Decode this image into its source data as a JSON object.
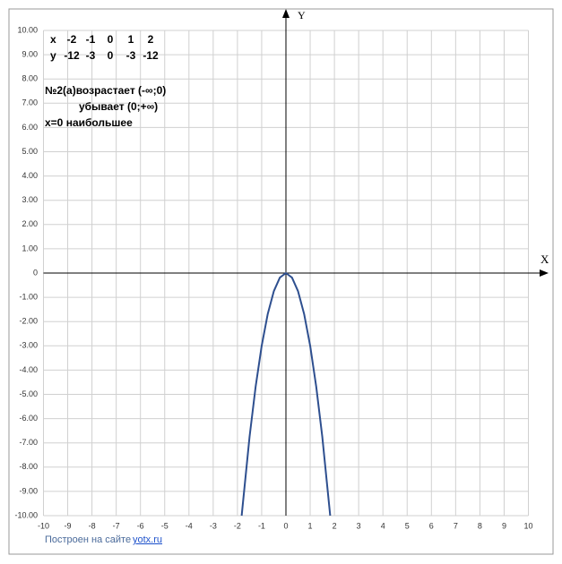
{
  "chart_data": {
    "type": "line",
    "x_label": "X",
    "y_label": "Y",
    "x": [
      -1.826,
      -1.5,
      -1.25,
      -1,
      -0.75,
      -0.5,
      -0.25,
      0,
      0.25,
      0.5,
      0.75,
      1,
      1.25,
      1.5,
      1.826
    ],
    "series": [
      {
        "color": "#2e4f8f",
        "values": [
          -10,
          -6.75,
          -4.6875,
          -3,
          -1.6875,
          -0.75,
          -0.1875,
          0,
          -0.1875,
          -0.75,
          -1.6875,
          -3,
          -4.6875,
          -6.75,
          -10
        ]
      }
    ],
    "xlim": [
      -10,
      10
    ],
    "ylim": [
      -10,
      10
    ],
    "xticks": [
      -10,
      -9,
      -8,
      -7,
      -6,
      -5,
      -4,
      -3,
      -2,
      -1,
      0,
      1,
      2,
      3,
      4,
      5,
      6,
      7,
      8,
      9,
      10
    ],
    "yticks": [
      {
        "value": 10,
        "label": "10.00"
      },
      {
        "value": 9,
        "label": "9.00"
      },
      {
        "value": 8,
        "label": "8.00"
      },
      {
        "value": 7,
        "label": "7.00"
      },
      {
        "value": 6,
        "label": "6.00"
      },
      {
        "value": 5,
        "label": "5.00"
      },
      {
        "value": 4,
        "label": "4.00"
      },
      {
        "value": 3,
        "label": "3.00"
      },
      {
        "value": 2,
        "label": "2.00"
      },
      {
        "value": 1,
        "label": "1.00"
      },
      0,
      {
        "value": -1,
        "label": "-1.00"
      },
      {
        "value": -2,
        "label": "-2.00"
      },
      {
        "value": -3,
        "label": "-3.00"
      },
      {
        "value": -4,
        "label": "-4.00"
      },
      {
        "value": -5,
        "label": "-5.00"
      },
      {
        "value": -6,
        "label": "-6.00"
      },
      {
        "value": -7,
        "label": "-7.00"
      },
      {
        "value": -8,
        "label": "-8.00"
      },
      {
        "value": -9,
        "label": "-9.00"
      },
      {
        "value": -10,
        "label": "-10.00"
      }
    ],
    "grid": true,
    "table": [
      [
        "x",
        "-2",
        "-1",
        "0",
        "1",
        "2"
      ],
      [
        "y",
        "-12",
        "-3",
        "0",
        "-3",
        "-12"
      ]
    ],
    "notes": [
      "№2(а)возрастает (-∞;0)",
      "убывает (0;+∞)",
      "x=0 наибольшее"
    ],
    "footer": {
      "text": "Построен на сайте",
      "link": "yotx.ru"
    }
  }
}
